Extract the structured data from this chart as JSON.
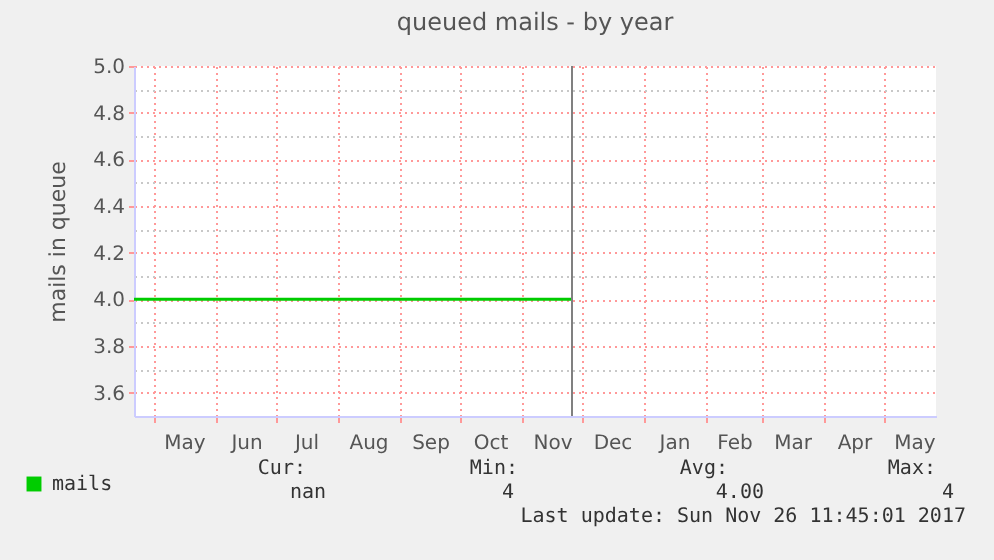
{
  "chart_data": {
    "type": "line",
    "title": "queued mails - by year",
    "ylabel": "mails in queue",
    "x": [
      "2017-04-21",
      "2017-11-26"
    ],
    "series": [
      {
        "name": "mails",
        "color": "#00cc00",
        "values": [
          4,
          4
        ]
      }
    ],
    "xlim": [
      "2017-04-21",
      "2018-05-27"
    ],
    "xticks": [
      {
        "value": "2017-05-01",
        "label": null
      },
      {
        "value": "2017-05-16",
        "label": "May"
      },
      {
        "value": "2017-06-01",
        "label": null
      },
      {
        "value": "2017-06-16",
        "label": "Jun"
      },
      {
        "value": "2017-07-01",
        "label": null
      },
      {
        "value": "2017-07-16",
        "label": "Jul"
      },
      {
        "value": "2017-08-01",
        "label": null
      },
      {
        "value": "2017-08-16",
        "label": "Aug"
      },
      {
        "value": "2017-09-01",
        "label": null
      },
      {
        "value": "2017-09-16",
        "label": "Sep"
      },
      {
        "value": "2017-10-01",
        "label": null
      },
      {
        "value": "2017-10-16",
        "label": "Oct"
      },
      {
        "value": "2017-11-01",
        "label": null
      },
      {
        "value": "2017-11-16",
        "label": "Nov"
      },
      {
        "value": "2017-12-01",
        "label": null
      },
      {
        "value": "2017-12-16",
        "label": "Dec"
      },
      {
        "value": "2018-01-01",
        "label": null
      },
      {
        "value": "2018-01-16",
        "label": "Jan"
      },
      {
        "value": "2018-02-01",
        "label": null
      },
      {
        "value": "2018-02-15",
        "label": "Feb"
      },
      {
        "value": "2018-03-01",
        "label": null
      },
      {
        "value": "2018-03-16",
        "label": "Mar"
      },
      {
        "value": "2018-04-01",
        "label": null
      },
      {
        "value": "2018-04-16",
        "label": "Apr"
      },
      {
        "value": "2018-05-01",
        "label": null
      },
      {
        "value": "2018-05-16",
        "label": "May"
      }
    ],
    "ylim": [
      3.5,
      5.0
    ],
    "yticks": [
      {
        "value": 3.6,
        "label": "3.6"
      },
      {
        "value": 3.7,
        "label": null
      },
      {
        "value": 3.8,
        "label": "3.8"
      },
      {
        "value": 3.9,
        "label": null
      },
      {
        "value": 4.0,
        "label": "4.0"
      },
      {
        "value": 4.1,
        "label": null
      },
      {
        "value": 4.2,
        "label": "4.2"
      },
      {
        "value": 4.3,
        "label": null
      },
      {
        "value": 4.4,
        "label": "4.4"
      },
      {
        "value": 4.5,
        "label": null
      },
      {
        "value": 4.6,
        "label": "4.6"
      },
      {
        "value": 4.7,
        "label": null
      },
      {
        "value": 4.8,
        "label": "4.8"
      },
      {
        "value": 4.9,
        "label": null
      },
      {
        "value": 5.0,
        "label": "5.0"
      }
    ],
    "grid": true,
    "legend": "bottom left",
    "marker": "none",
    "line_style": "solid",
    "ref_lines": [
      {
        "axis": "x",
        "value": "2017-11-26",
        "color": "#808080"
      }
    ],
    "annotations": [
      "Cur:",
      "Min:",
      "Avg:",
      "Max:",
      "nan",
      "4",
      "4.00",
      "4",
      "Last update: Sun Nov 26 11:45:01 2017"
    ]
  }
}
